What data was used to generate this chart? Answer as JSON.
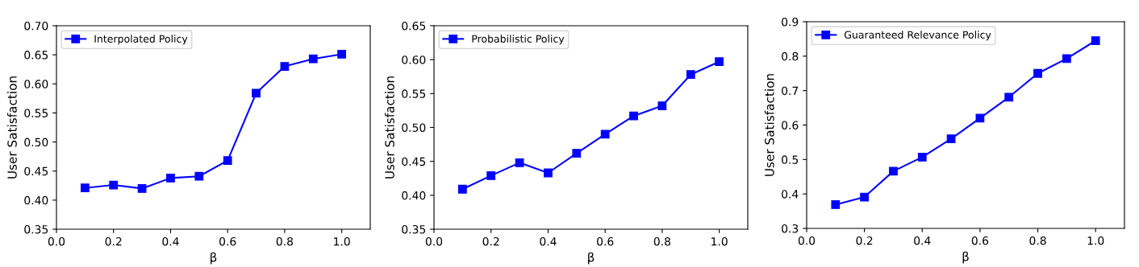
{
  "chart_data": [
    {
      "type": "line",
      "xlabel": "β",
      "ylabel": "User Satisfaction",
      "x": [
        0.1,
        0.2,
        0.3,
        0.4,
        0.5,
        0.6,
        0.7,
        0.8,
        0.9,
        1.0
      ],
      "series": [
        {
          "name": "Interpolated Policy",
          "color": "#0000ff",
          "values": [
            0.421,
            0.426,
            0.42,
            0.438,
            0.441,
            0.468,
            0.584,
            0.63,
            0.643,
            0.651
          ]
        }
      ],
      "xlim": [
        0,
        1.1
      ],
      "xticks": [
        {
          "value": 0,
          "label": "0.0"
        },
        {
          "value": 0.2,
          "label": "0.2"
        },
        {
          "value": 0.4,
          "label": "0.4"
        },
        {
          "value": 0.6,
          "label": "0.6"
        },
        {
          "value": 0.8,
          "label": "0.8"
        },
        {
          "value": 1.0,
          "label": "1.0"
        }
      ],
      "ylim": [
        0.35,
        0.7
      ],
      "yticks": [
        {
          "value": 0.35,
          "label": "0.35"
        },
        {
          "value": 0.4,
          "label": "0.40"
        },
        {
          "value": 0.45,
          "label": "0.45"
        },
        {
          "value": 0.5,
          "label": "0.50"
        },
        {
          "value": 0.55,
          "label": "0.55"
        },
        {
          "value": 0.6,
          "label": "0.60"
        },
        {
          "value": 0.65,
          "label": "0.65"
        },
        {
          "value": 0.7,
          "label": "0.70"
        }
      ],
      "marker": "square",
      "line_style": "solid",
      "legend": "top left",
      "grid": false
    },
    {
      "type": "line",
      "xlabel": "β",
      "ylabel": "User Satisfaction",
      "x": [
        0.1,
        0.2,
        0.3,
        0.4,
        0.5,
        0.6,
        0.7,
        0.8,
        0.9,
        1.0
      ],
      "series": [
        {
          "name": "Probabilistic Policy",
          "color": "#0000ff",
          "values": [
            0.409,
            0.429,
            0.448,
            0.433,
            0.462,
            0.49,
            0.517,
            0.532,
            0.578,
            0.597
          ]
        }
      ],
      "xlim": [
        0,
        1.1
      ],
      "xticks": [
        {
          "value": 0,
          "label": "0.0"
        },
        {
          "value": 0.2,
          "label": "0.2"
        },
        {
          "value": 0.4,
          "label": "0.4"
        },
        {
          "value": 0.6,
          "label": "0.6"
        },
        {
          "value": 0.8,
          "label": "0.8"
        },
        {
          "value": 1.0,
          "label": "1.0"
        }
      ],
      "ylim": [
        0.35,
        0.65
      ],
      "yticks": [
        {
          "value": 0.35,
          "label": "0.35"
        },
        {
          "value": 0.4,
          "label": "0.40"
        },
        {
          "value": 0.45,
          "label": "0.45"
        },
        {
          "value": 0.5,
          "label": "0.50"
        },
        {
          "value": 0.55,
          "label": "0.55"
        },
        {
          "value": 0.6,
          "label": "0.60"
        },
        {
          "value": 0.65,
          "label": "0.65"
        }
      ],
      "marker": "square",
      "line_style": "solid",
      "legend": "top left",
      "grid": false
    },
    {
      "type": "line",
      "xlabel": "β",
      "ylabel": "User Satisfaction",
      "x": [
        0.1,
        0.2,
        0.3,
        0.4,
        0.5,
        0.6,
        0.7,
        0.8,
        0.9,
        1.0
      ],
      "series": [
        {
          "name": "Guaranteed Relevance Policy",
          "color": "#0000ff",
          "values": [
            0.369,
            0.391,
            0.466,
            0.507,
            0.56,
            0.62,
            0.681,
            0.75,
            0.793,
            0.845
          ]
        }
      ],
      "xlim": [
        0,
        1.1
      ],
      "xticks": [
        {
          "value": 0,
          "label": "0.0"
        },
        {
          "value": 0.2,
          "label": "0.2"
        },
        {
          "value": 0.4,
          "label": "0.4"
        },
        {
          "value": 0.6,
          "label": "0.6"
        },
        {
          "value": 0.8,
          "label": "0.8"
        },
        {
          "value": 1.0,
          "label": "1.0"
        }
      ],
      "ylim": [
        0.3,
        0.9
      ],
      "yticks": [
        {
          "value": 0.3,
          "label": "0.3"
        },
        {
          "value": 0.4,
          "label": "0.4"
        },
        {
          "value": 0.5,
          "label": "0.5"
        },
        {
          "value": 0.6,
          "label": "0.6"
        },
        {
          "value": 0.7,
          "label": "0.7"
        },
        {
          "value": 0.8,
          "label": "0.8"
        },
        {
          "value": 0.9,
          "label": "0.9"
        }
      ],
      "marker": "square",
      "line_style": "solid",
      "legend": "top left",
      "grid": false
    }
  ]
}
